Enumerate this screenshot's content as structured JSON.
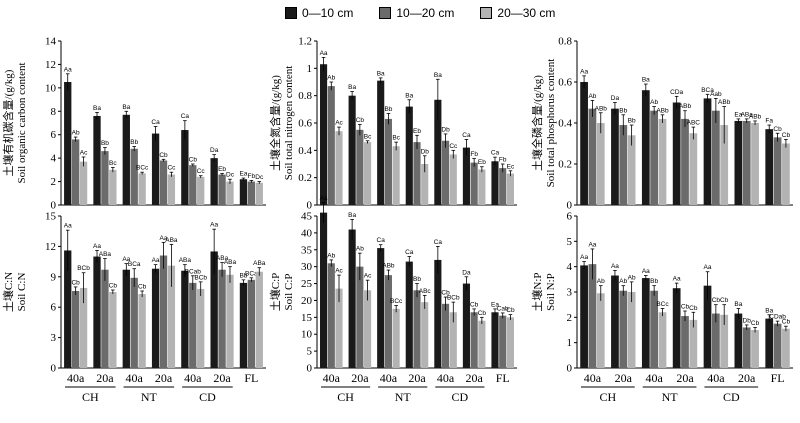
{
  "legend": [
    {
      "label": "0—10 cm",
      "color": "#1a1a1a"
    },
    {
      "label": "10—20 cm",
      "color": "#6b6b6b"
    },
    {
      "label": "20—30 cm",
      "color": "#b3b3b3"
    }
  ],
  "x_tick_labels": [
    "40a",
    "20a",
    "40a",
    "20a",
    "40a",
    "20a",
    "FL"
  ],
  "x_group_labels": [
    "CH",
    "NT",
    "CD"
  ],
  "chart_data": [
    {
      "type": "bar",
      "ylabel_zh": "土壤有机碳含量/(g/kg)",
      "ylabel_en": "Soil organic carbon content",
      "ylim": [
        0,
        14
      ],
      "yticks": [
        0,
        2,
        4,
        6,
        8,
        10,
        12,
        14
      ],
      "series": [
        {
          "values": [
            10.5,
            7.6,
            7.7,
            6.1,
            6.4,
            4.0,
            2.2
          ],
          "errors": [
            0.7,
            0.3,
            0.3,
            0.6,
            0.8,
            0.3,
            0.1
          ],
          "letters": [
            "Aa",
            "Ba",
            "Ba",
            "Ca",
            "Ca",
            "Da",
            "Ea"
          ]
        },
        {
          "values": [
            5.6,
            4.6,
            4.8,
            3.8,
            3.4,
            2.6,
            2.0
          ],
          "errors": [
            0.2,
            0.3,
            0.2,
            0.1,
            0.1,
            0.1,
            0.1
          ],
          "letters": [
            "Ab",
            "Bb",
            "Bb",
            "Cb",
            "Cb",
            "Eb",
            "Fb"
          ]
        },
        {
          "values": [
            3.7,
            3.0,
            2.7,
            2.6,
            2.4,
            2.0,
            1.9
          ],
          "errors": [
            0.4,
            0.2,
            0.1,
            0.2,
            0.1,
            0.2,
            0.1
          ],
          "letters": [
            "Ac",
            "Bc",
            "BCc",
            "Cc",
            "Cc",
            "Dc",
            "Dc"
          ]
        }
      ]
    },
    {
      "type": "bar",
      "ylabel_zh": "土壤全氮含量/(g/kg)",
      "ylabel_en": "Soil total nitrogen content",
      "ylim": [
        0,
        1.2
      ],
      "yticks": [
        0,
        0.2,
        0.4,
        0.6,
        0.8,
        1.0,
        1.2
      ],
      "series": [
        {
          "values": [
            1.03,
            0.8,
            0.91,
            0.72,
            0.77,
            0.42,
            0.32
          ],
          "errors": [
            0.05,
            0.03,
            0.02,
            0.05,
            0.15,
            0.06,
            0.03
          ],
          "letters": [
            "Aa",
            "Ba",
            "Ba",
            "Ba",
            "Ba",
            "Ca",
            "Ca"
          ]
        },
        {
          "values": [
            0.87,
            0.55,
            0.63,
            0.46,
            0.47,
            0.31,
            0.27
          ],
          "errors": [
            0.03,
            0.04,
            0.04,
            0.05,
            0.05,
            0.03,
            0.03
          ],
          "letters": [
            "Ab",
            "Cb",
            "Bb",
            "Eb",
            "Db",
            "Fb",
            "Fb"
          ]
        },
        {
          "values": [
            0.54,
            0.46,
            0.43,
            0.3,
            0.37,
            0.26,
            0.23
          ],
          "errors": [
            0.03,
            0.01,
            0.03,
            0.06,
            0.03,
            0.02,
            0.02
          ],
          "letters": [
            "Ac",
            "Bc",
            "Bc",
            "Db",
            "Cc",
            "Eb",
            "Ec"
          ]
        }
      ]
    },
    {
      "type": "bar",
      "ylabel_zh": "土壤全磷含量/(g/kg)",
      "ylabel_en": "Soil total phosphorus content",
      "ylim": [
        0,
        0.8
      ],
      "yticks": [
        0,
        0.2,
        0.4,
        0.6,
        0.8
      ],
      "series": [
        {
          "values": [
            0.6,
            0.47,
            0.56,
            0.5,
            0.52,
            0.41,
            0.37
          ],
          "errors": [
            0.03,
            0.03,
            0.03,
            0.03,
            0.02,
            0.01,
            0.02
          ],
          "letters": [
            "Aa",
            "Da",
            "Ba",
            "CDa",
            "BCa",
            "Ea",
            "Fa"
          ]
        },
        {
          "values": [
            0.47,
            0.39,
            0.46,
            0.42,
            0.46,
            0.41,
            0.33
          ],
          "errors": [
            0.04,
            0.05,
            0.02,
            0.04,
            0.06,
            0.01,
            0.02
          ],
          "letters": [
            "Ab",
            "Bb",
            "Ab",
            "ABb",
            "Aab",
            "ABa",
            "Cb"
          ]
        },
        {
          "values": [
            0.4,
            0.34,
            0.42,
            0.35,
            0.39,
            0.4,
            0.3
          ],
          "errors": [
            0.05,
            0.05,
            0.02,
            0.03,
            0.09,
            0.01,
            0.02
          ],
          "letters": [
            "ABb",
            "Bb",
            "ABb",
            "ABC",
            "ABb",
            "ABb",
            "Cb"
          ]
        }
      ]
    },
    {
      "type": "bar",
      "ylabel_zh": "土壤C:N",
      "ylabel_en": "Soil C:N",
      "ylim": [
        0,
        15
      ],
      "yticks": [
        0,
        3,
        6,
        9,
        12,
        15
      ],
      "series": [
        {
          "values": [
            11.6,
            11.0,
            9.7,
            9.8,
            9.6,
            11.5,
            8.4
          ],
          "errors": [
            2.0,
            0.6,
            0.6,
            0.4,
            0.6,
            2.2,
            0.3
          ],
          "letters": [
            "Aa",
            "Aa",
            "Aa",
            "Aa",
            "ABa",
            "Aa",
            "Bb"
          ]
        },
        {
          "values": [
            7.6,
            9.7,
            8.9,
            11.1,
            8.4,
            9.7,
            8.7
          ],
          "errors": [
            0.4,
            1.1,
            0.9,
            1.3,
            0.7,
            0.7,
            0.2
          ],
          "letters": [
            "Cb",
            "ABa",
            "BCa",
            "Aa",
            "BCab",
            "ABa",
            "BCa"
          ]
        },
        {
          "values": [
            7.9,
            7.5,
            7.3,
            10.1,
            7.8,
            9.2,
            9.5
          ],
          "errors": [
            1.5,
            0.2,
            0.3,
            2.1,
            0.7,
            0.8,
            0.4
          ],
          "letters": [
            "BCb",
            "Cb",
            "Cb",
            "ABa",
            "BCb",
            "ABa",
            "ABa"
          ]
        }
      ]
    },
    {
      "type": "bar",
      "ylabel_zh": "土壤C:P",
      "ylabel_en": "Soil C:P",
      "ylim": [
        0,
        45
      ],
      "yticks": [
        0,
        5,
        10,
        15,
        20,
        25,
        30,
        35,
        40,
        45
      ],
      "series": [
        {
          "values": [
            46.0,
            41.0,
            35.5,
            31.5,
            32.0,
            25.0,
            16.5
          ],
          "errors": [
            3.0,
            3.0,
            1.0,
            1.5,
            4.0,
            2.0,
            1.0
          ],
          "letters": [
            "Aa",
            "Ba",
            "Ca",
            "Ca",
            "Ca",
            "Da",
            "Ea"
          ]
        },
        {
          "values": [
            31.0,
            30.0,
            27.5,
            23.0,
            19.0,
            16.5,
            15.5
          ],
          "errors": [
            1.0,
            4.0,
            1.5,
            2.0,
            2.0,
            1.0,
            0.8
          ],
          "letters": [
            "Ab",
            "Ab",
            "ABb",
            "Bb",
            "Cb",
            "Cb",
            "Cab"
          ]
        },
        {
          "values": [
            23.5,
            23.0,
            17.5,
            19.5,
            16.5,
            14.0,
            15.0
          ],
          "errors": [
            4.0,
            3.0,
            1.0,
            2.0,
            3.0,
            1.0,
            0.8
          ],
          "letters": [
            "Ac",
            "Ac",
            "BCc",
            "ABc",
            "BCb",
            "Cb",
            "Cb"
          ]
        }
      ]
    },
    {
      "type": "bar",
      "ylabel_zh": "土壤N:P",
      "ylabel_en": "Soil N:P",
      "ylim": [
        0,
        6
      ],
      "yticks": [
        0,
        1,
        2,
        3,
        4,
        5,
        6
      ],
      "series": [
        {
          "values": [
            4.05,
            3.65,
            3.55,
            3.15,
            3.25,
            2.15,
            1.95
          ],
          "errors": [
            0.15,
            0.2,
            0.1,
            0.2,
            0.55,
            0.2,
            0.15
          ],
          "letters": [
            "Aa",
            "Aa",
            "Aa",
            "Aa",
            "Aa",
            "Ba",
            "Ba"
          ]
        },
        {
          "values": [
            4.1,
            3.05,
            3.05,
            2.05,
            2.15,
            1.6,
            1.75
          ],
          "errors": [
            0.6,
            0.2,
            0.2,
            0.2,
            0.35,
            0.1,
            0.1
          ],
          "letters": [
            "Aa",
            "Ab",
            "Bb",
            "Cb",
            "Cb",
            "Db",
            "CDab"
          ]
        },
        {
          "values": [
            2.95,
            3.0,
            2.2,
            1.9,
            2.1,
            1.5,
            1.55
          ],
          "errors": [
            0.3,
            0.4,
            0.15,
            0.3,
            0.4,
            0.1,
            0.1
          ],
          "letters": [
            "Ab",
            "Ab",
            "BCc",
            "Cb",
            "Cb",
            "Cb",
            "Cb"
          ]
        }
      ]
    }
  ]
}
